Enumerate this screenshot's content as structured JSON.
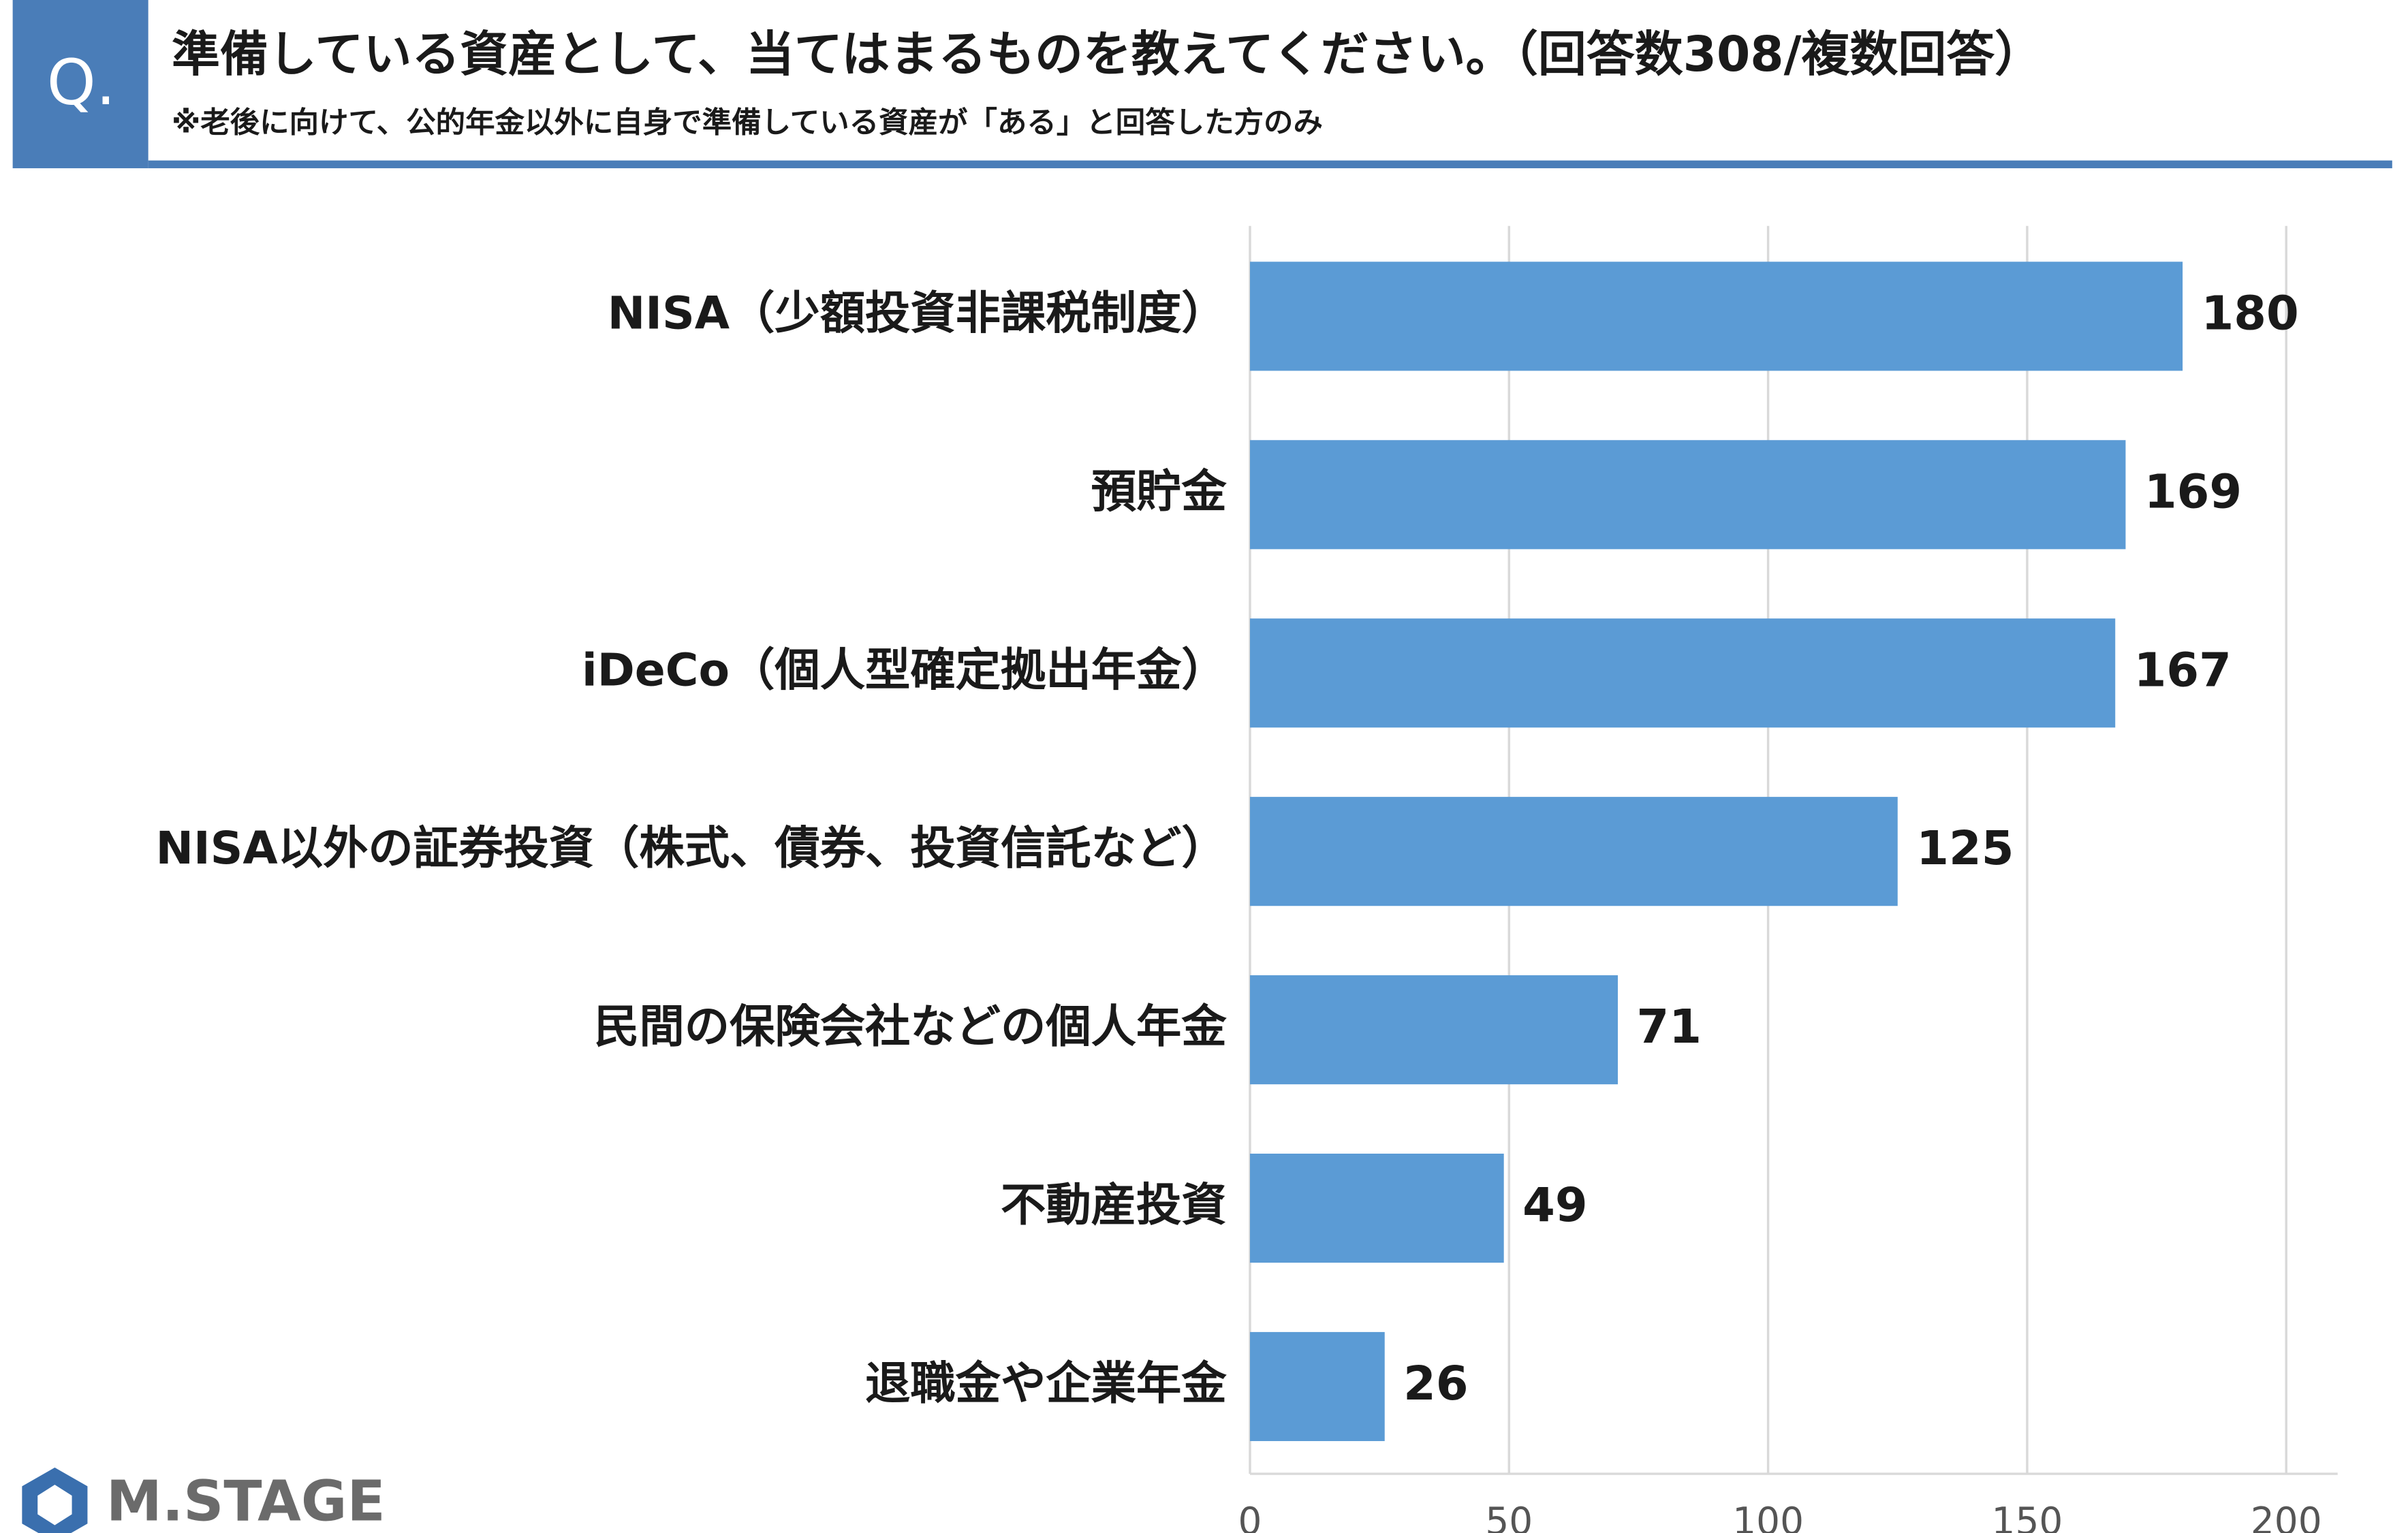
{
  "header": {
    "badge": "Q.",
    "title": "準備している資産として、当てはまるものを教えてください。（回答数308/複数回答）",
    "note": "※老後に向けて、公的年金以外に自身で準備している資産が「ある」と回答した方のみ"
  },
  "footer": {
    "logo": "M.STAGE"
  },
  "chart_data": {
    "type": "bar",
    "orientation": "horizontal",
    "categories": [
      "NISA（少額投資非課税制度）",
      "預貯金",
      "iDeCo（個人型確定拠出年金）",
      "NISA以外の証券投資（株式、債券、投資信託など）",
      "民間の保険会社などの個人年金",
      "不動産投資",
      "退職金や企業年金"
    ],
    "values": [
      180,
      169,
      167,
      125,
      71,
      49,
      26
    ],
    "color": "#5b9bd5",
    "xlim": [
      0,
      200
    ],
    "xticks": [
      0,
      50,
      100,
      150,
      200
    ],
    "grid": true
  }
}
